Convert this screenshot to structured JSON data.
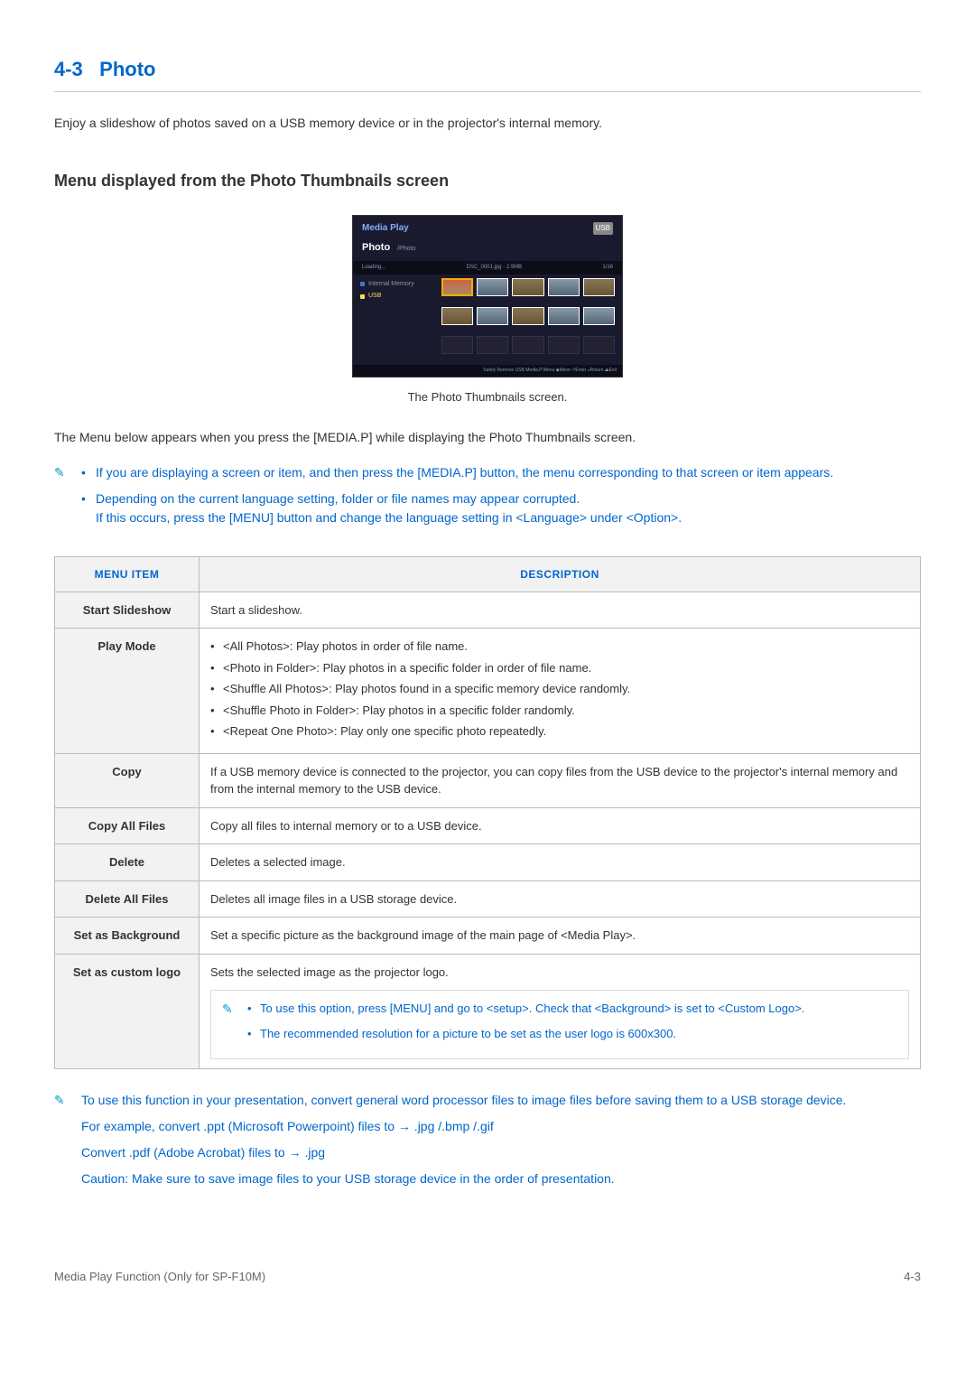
{
  "section": {
    "number": "4-3",
    "title": "Photo"
  },
  "intro": "Enjoy a slideshow of photos saved on a USB memory device or in the projector's internal memory.",
  "subheading": "Menu displayed from the Photo Thumbnails screen",
  "screenshot": {
    "mediaPlay": "Media Play",
    "usbBadge": "USB",
    "photo": "Photo",
    "path": "/Photo",
    "loading": "Loading...",
    "fileinfo": "DSC_0001.jpg - 2.9MB",
    "counter": "1/16",
    "side_internal": "Internal Memory",
    "side_usb": "USB",
    "footer": "Safely Remove USB   Media.P Menu ◆Move ⏎Enter ⤶Return ⏏Exit"
  },
  "caption": "The Photo Thumbnails screen.",
  "para1": "The Menu below appears when you press the [MEDIA.P] while displaying the Photo Thumbnails screen.",
  "notes1": {
    "a": "If you are displaying a screen or item, and then press the [MEDIA.P] button, the menu corresponding to that screen or item appears.",
    "b1": "Depending on the current language setting, folder or file names may appear corrupted.",
    "b2": "If this occurs, press the [MENU] button and change the language setting in <Language> under <Option>."
  },
  "table": {
    "h1": "MENU ITEM",
    "h2": "DESCRIPTION",
    "rows": {
      "startSlideshow": {
        "item": "Start Slideshow",
        "desc": "Start a slideshow."
      },
      "playMode": {
        "item": "Play Mode",
        "li1": "<All Photos>: Play photos in order of file name.",
        "li2": "<Photo in Folder>: Play photos in a specific folder in order of file name.",
        "li3": "<Shuffle All Photos>: Play photos found in a specific memory device randomly.",
        "li4": "<Shuffle Photo in Folder>: Play photos in a specific folder randomly.",
        "li5": "<Repeat One Photo>: Play only one specific photo repeatedly."
      },
      "copy": {
        "item": "Copy",
        "desc": "If a USB memory device is connected to the projector, you can copy files from the USB device to the projector's internal memory and from the internal memory to the USB device."
      },
      "copyAll": {
        "item": "Copy All Files",
        "desc": "Copy all files to internal memory or to a USB device."
      },
      "delete": {
        "item": "Delete",
        "desc": "Deletes a selected image."
      },
      "deleteAll": {
        "item": "Delete All Files",
        "desc": "Deletes all image files in a USB storage device."
      },
      "setBg": {
        "item": "Set as Background",
        "desc": "Set a specific picture as the background image of the main page of <Media Play>."
      },
      "setLogo": {
        "item": "Set as custom logo",
        "desc": "Sets the selected image as the projector logo.",
        "note1": "To use this option, press [MENU] and go to <setup>. Check that <Background> is set to <Custom Logo>.",
        "note2": "The recommended resolution for a picture to be set as the user logo is 600x300."
      }
    }
  },
  "bottomNote": {
    "p1": "To use this function in your presentation, convert general word processor files to image files before saving them to a USB storage device.",
    "p2": "For example, convert .ppt (Microsoft Powerpoint) files to → .jpg /.bmp /.gif",
    "p3": "Convert .pdf (Adobe Acrobat) files to → .jpg",
    "p4": "Caution: Make sure to save image files to your USB storage device in the order of presentation."
  },
  "footer": {
    "left": "Media Play Function (Only for SP-F10M)",
    "right": "4-3"
  }
}
